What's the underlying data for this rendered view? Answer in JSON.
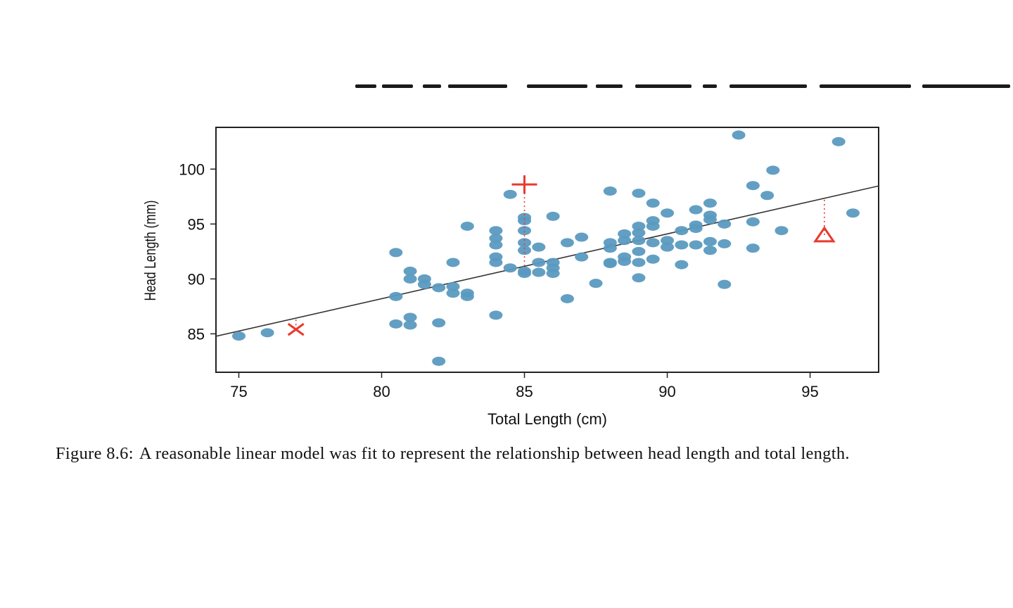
{
  "chart_data": {
    "type": "scatter",
    "xlabel": "Total Length (cm)",
    "ylabel": "Head Length (mm)",
    "xlim": [
      74.2,
      97.4
    ],
    "ylim": [
      81.5,
      103.8
    ],
    "x_ticks": [
      75,
      80,
      85,
      90,
      95
    ],
    "y_ticks": [
      85,
      90,
      95,
      100
    ],
    "grid": false,
    "point_color": "#5b9ac0",
    "highlight_color": "#e8392e",
    "line_color": "#333333",
    "fit_line": {
      "intercept": 41.0,
      "slope": 0.59
    },
    "points": [
      [
        75,
        84.8
      ],
      [
        76,
        85.1
      ],
      [
        80.5,
        92.4
      ],
      [
        80.5,
        88.4
      ],
      [
        80.5,
        85.9
      ],
      [
        81,
        90.7
      ],
      [
        81,
        90.0
      ],
      [
        81,
        86.5
      ],
      [
        81,
        85.8
      ],
      [
        81.5,
        90.0
      ],
      [
        81.5,
        89.5
      ],
      [
        82,
        89.2
      ],
      [
        82,
        86.0
      ],
      [
        82,
        82.5
      ],
      [
        82.5,
        91.5
      ],
      [
        82.5,
        89.3
      ],
      [
        82.5,
        88.7
      ],
      [
        83,
        94.8
      ],
      [
        83,
        88.7
      ],
      [
        83,
        88.4
      ],
      [
        84,
        94.4
      ],
      [
        84,
        93.7
      ],
      [
        84,
        93.1
      ],
      [
        84,
        92.0
      ],
      [
        84,
        91.5
      ],
      [
        84,
        86.7
      ],
      [
        84.5,
        97.7
      ],
      [
        84.5,
        91.0
      ],
      [
        85,
        95.6
      ],
      [
        85,
        95.3
      ],
      [
        85,
        94.4
      ],
      [
        85,
        93.3
      ],
      [
        85,
        92.6
      ],
      [
        85,
        90.7
      ],
      [
        85,
        90.5
      ],
      [
        85.5,
        92.9
      ],
      [
        85.5,
        91.5
      ],
      [
        85.5,
        90.6
      ],
      [
        86,
        95.7
      ],
      [
        86,
        91.5
      ],
      [
        86,
        91.0
      ],
      [
        86,
        90.5
      ],
      [
        86.5,
        93.3
      ],
      [
        86.5,
        88.2
      ],
      [
        87,
        93.8
      ],
      [
        87,
        92.0
      ],
      [
        87.5,
        89.6
      ],
      [
        88,
        98.0
      ],
      [
        88,
        93.3
      ],
      [
        88,
        92.8
      ],
      [
        88,
        91.5
      ],
      [
        88,
        91.4
      ],
      [
        88.5,
        94.1
      ],
      [
        88.5,
        93.5
      ],
      [
        88.5,
        92.0
      ],
      [
        88.5,
        91.6
      ],
      [
        89,
        97.8
      ],
      [
        89,
        94.8
      ],
      [
        89,
        94.2
      ],
      [
        89,
        93.5
      ],
      [
        89,
        92.5
      ],
      [
        89,
        91.5
      ],
      [
        89,
        90.1
      ],
      [
        89.5,
        96.9
      ],
      [
        89.5,
        95.3
      ],
      [
        89.5,
        94.8
      ],
      [
        89.5,
        93.3
      ],
      [
        89.5,
        91.8
      ],
      [
        90,
        96.0
      ],
      [
        90,
        93.5
      ],
      [
        90,
        92.9
      ],
      [
        90.5,
        94.4
      ],
      [
        90.5,
        93.1
      ],
      [
        90.5,
        91.3
      ],
      [
        91,
        96.3
      ],
      [
        91,
        94.9
      ],
      [
        91,
        94.6
      ],
      [
        91,
        93.1
      ],
      [
        91.5,
        96.9
      ],
      [
        91.5,
        95.8
      ],
      [
        91.5,
        95.4
      ],
      [
        91.5,
        93.4
      ],
      [
        91.5,
        92.6
      ],
      [
        92,
        95.0
      ],
      [
        92,
        93.2
      ],
      [
        92,
        89.5
      ],
      [
        92.5,
        103.1
      ],
      [
        93,
        98.5
      ],
      [
        93,
        95.2
      ],
      [
        93,
        92.8
      ],
      [
        93.5,
        97.6
      ],
      [
        93.7,
        99.9
      ],
      [
        94,
        94.4
      ],
      [
        96,
        102.5
      ],
      [
        96.5,
        96.0
      ]
    ],
    "highlights": [
      {
        "marker": "x",
        "x": 77,
        "y": 85.4
      },
      {
        "marker": "plus",
        "x": 85,
        "y": 98.6
      },
      {
        "marker": "triangle",
        "x": 95.5,
        "y": 94.0
      }
    ]
  },
  "caption": {
    "label": "Figure 8.6:",
    "text": "A reasonable linear model was fit to represent the relationship between head length and total length."
  }
}
